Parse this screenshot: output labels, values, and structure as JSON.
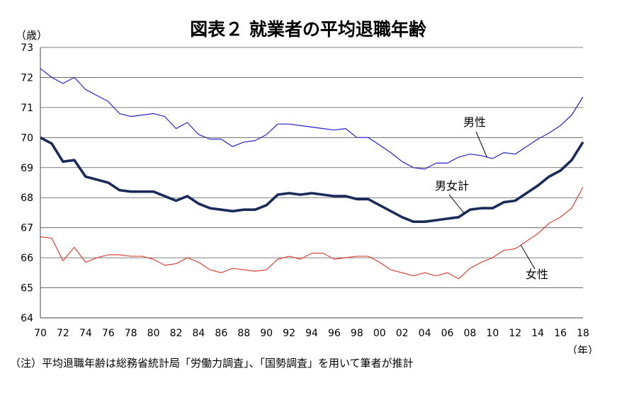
{
  "chart_data": {
    "type": "line",
    "title": "図表２ 就業者の平均退職年齢",
    "y_unit": "（歳）",
    "x_unit": "（年）",
    "ylim": [
      64,
      73
    ],
    "yticks": [
      64,
      65,
      66,
      67,
      68,
      69,
      70,
      71,
      72,
      73
    ],
    "xlim": [
      1970,
      2018
    ],
    "xtick_labels": [
      "70",
      "72",
      "74",
      "76",
      "78",
      "80",
      "82",
      "84",
      "86",
      "88",
      "90",
      "92",
      "94",
      "96",
      "98",
      "00",
      "02",
      "04",
      "06",
      "08",
      "10",
      "12",
      "14",
      "16",
      "18"
    ],
    "grid": true,
    "x": [
      1970,
      1971,
      1972,
      1973,
      1974,
      1975,
      1976,
      1977,
      1978,
      1979,
      1980,
      1981,
      1982,
      1983,
      1984,
      1985,
      1986,
      1987,
      1988,
      1989,
      1990,
      1991,
      1992,
      1993,
      1994,
      1995,
      1996,
      1997,
      1998,
      1999,
      2000,
      2001,
      2002,
      2003,
      2004,
      2005,
      2006,
      2007,
      2008,
      2009,
      2010,
      2011,
      2012,
      2013,
      2014,
      2015,
      2016,
      2017,
      2018
    ],
    "series": [
      {
        "name": "男性",
        "color": "#2222cc",
        "values": [
          72.3,
          72.0,
          71.8,
          72.0,
          71.6,
          71.4,
          71.2,
          70.8,
          70.7,
          70.75,
          70.8,
          70.7,
          70.3,
          70.5,
          70.1,
          69.95,
          69.95,
          69.7,
          69.85,
          69.9,
          70.1,
          70.45,
          70.45,
          70.4,
          70.35,
          70.3,
          70.25,
          70.3,
          70.0,
          70.0,
          69.75,
          69.5,
          69.2,
          69.0,
          68.95,
          69.15,
          69.15,
          69.35,
          69.45,
          69.4,
          69.3,
          69.5,
          69.45,
          69.7,
          69.95,
          70.15,
          70.4,
          70.75,
          71.35
        ]
      },
      {
        "name": "男女計",
        "color": "#1a2a5a",
        "values": [
          70.0,
          69.8,
          69.2,
          69.25,
          68.7,
          68.6,
          68.5,
          68.25,
          68.2,
          68.2,
          68.2,
          68.05,
          67.9,
          68.05,
          67.8,
          67.65,
          67.6,
          67.55,
          67.6,
          67.6,
          67.75,
          68.1,
          68.15,
          68.1,
          68.15,
          68.1,
          68.05,
          68.05,
          67.95,
          67.95,
          67.75,
          67.55,
          67.35,
          67.2,
          67.2,
          67.25,
          67.3,
          67.35,
          67.6,
          67.65,
          67.65,
          67.85,
          67.9,
          68.15,
          68.4,
          68.7,
          68.9,
          69.25,
          69.85
        ]
      },
      {
        "name": "女性",
        "color": "#dd3322",
        "values": [
          66.7,
          66.65,
          65.9,
          66.35,
          65.85,
          66.0,
          66.1,
          66.1,
          66.05,
          66.05,
          65.95,
          65.75,
          65.8,
          66.0,
          65.85,
          65.6,
          65.5,
          65.65,
          65.6,
          65.55,
          65.6,
          65.95,
          66.05,
          65.95,
          66.15,
          66.15,
          65.95,
          66.0,
          66.05,
          66.05,
          65.85,
          65.6,
          65.5,
          65.4,
          65.5,
          65.4,
          65.5,
          65.3,
          65.65,
          65.85,
          66.0,
          66.25,
          66.3,
          66.55,
          66.8,
          67.15,
          67.35,
          67.65,
          68.35
        ]
      }
    ]
  },
  "note": "（注）平均退職年齢は総務省統計局「労働力調査」、「国勢調査」を用いて筆者が推計"
}
